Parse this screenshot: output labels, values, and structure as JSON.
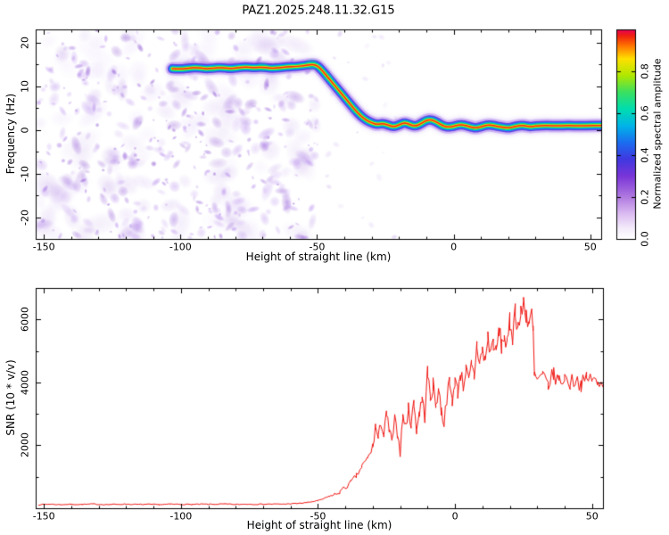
{
  "title": "PAZ1.2025.248.11.32.G15",
  "figure": {
    "bg": "#ffffff",
    "frame_color": "#000000"
  },
  "chart_data": [
    {
      "type": "heatmap",
      "panel": "spectrogram",
      "xlabel": "Height of straight line (km)",
      "ylabel": "Frequency (Hz)",
      "xlim": [
        -153,
        54
      ],
      "ylim": [
        -25,
        23
      ],
      "xticks": [
        -150,
        -100,
        -50,
        0,
        50
      ],
      "yticks": [
        -20,
        -10,
        0,
        10,
        20
      ],
      "grid": false,
      "colorbar": {
        "label": "Normalized spectral amplitude",
        "ticks": [
          0.0,
          0.2,
          0.4,
          0.6,
          0.8
        ],
        "vmin": 0.0,
        "vmax": 1.0,
        "stops": [
          [
            0,
            "#ffffff"
          ],
          [
            0.05,
            "#f4ecfb"
          ],
          [
            0.12,
            "#dcbcf2"
          ],
          [
            0.2,
            "#b07ae0"
          ],
          [
            0.3,
            "#7a35d8"
          ],
          [
            0.38,
            "#4038e0"
          ],
          [
            0.46,
            "#1b6df0"
          ],
          [
            0.54,
            "#00b4e8"
          ],
          [
            0.62,
            "#00ddb0"
          ],
          [
            0.7,
            "#3ae060"
          ],
          [
            0.78,
            "#b0e800"
          ],
          [
            0.86,
            "#ffe000"
          ],
          [
            0.92,
            "#ff7800"
          ],
          [
            0.97,
            "#f02010"
          ],
          [
            1,
            "#e8005a"
          ]
        ]
      },
      "ridge": [
        [
          -103,
          14
        ],
        [
          -100,
          13.9
        ],
        [
          -97,
          14.1
        ],
        [
          -94,
          14.3
        ],
        [
          -91,
          14.0
        ],
        [
          -88,
          14.1
        ],
        [
          -85,
          14.3
        ],
        [
          -82,
          14.0
        ],
        [
          -79,
          14.2
        ],
        [
          -76,
          14.4
        ],
        [
          -73,
          14.2
        ],
        [
          -70,
          14.4
        ],
        [
          -67,
          14.1
        ],
        [
          -64,
          14.2
        ],
        [
          -61,
          14.4
        ],
        [
          -58,
          14.5
        ],
        [
          -55,
          14.7
        ],
        [
          -52,
          15.0
        ],
        [
          -50,
          14.8
        ],
        [
          -48,
          13.5
        ],
        [
          -46,
          12.0
        ],
        [
          -44,
          10.5
        ],
        [
          -42,
          9.0
        ],
        [
          -40,
          7.5
        ],
        [
          -38,
          6.0
        ],
        [
          -36,
          4.5
        ],
        [
          -34,
          3.2
        ],
        [
          -32,
          2.2
        ],
        [
          -30,
          1.6
        ],
        [
          -28,
          1.2
        ],
        [
          -26,
          1.5
        ],
        [
          -24,
          1.1
        ],
        [
          -22,
          0.7
        ],
        [
          -20,
          1.1
        ],
        [
          -18,
          1.7
        ],
        [
          -16,
          1.2
        ],
        [
          -14,
          0.8
        ],
        [
          -12,
          1.4
        ],
        [
          -10,
          2.2
        ],
        [
          -8,
          2.3
        ],
        [
          -6,
          1.7
        ],
        [
          -4,
          0.9
        ],
        [
          -2,
          0.6
        ],
        [
          0,
          0.8
        ],
        [
          2,
          1.2
        ],
        [
          4,
          1.1
        ],
        [
          6,
          0.7
        ],
        [
          8,
          0.4
        ],
        [
          10,
          0.7
        ],
        [
          12,
          1.1
        ],
        [
          14,
          1.1
        ],
        [
          16,
          0.8
        ],
        [
          18,
          0.6
        ],
        [
          20,
          0.4
        ],
        [
          22,
          0.7
        ],
        [
          24,
          1.0
        ],
        [
          26,
          1.0
        ],
        [
          28,
          0.7
        ],
        [
          30,
          0.9
        ],
        [
          34,
          1.0
        ],
        [
          38,
          0.9
        ],
        [
          42,
          1.0
        ],
        [
          46,
          0.9
        ],
        [
          50,
          1.0
        ],
        [
          54,
          1.0
        ]
      ],
      "ridge_blobs": [
        [
          -88,
          14.1,
          5
        ],
        [
          -70,
          14.4,
          6
        ],
        [
          -52,
          15.0,
          7
        ],
        [
          -46,
          12.0,
          5
        ],
        [
          -36,
          4.5,
          5
        ],
        [
          -10,
          2.2,
          5
        ],
        [
          -4,
          0.9,
          5
        ],
        [
          22,
          0.7,
          4
        ]
      ],
      "noise": {
        "seed": 1337,
        "dense": {
          "x": [
            -152.5,
            -50
          ],
          "count": 520
        },
        "sparse": {
          "x": [
            -50,
            -18
          ],
          "count": 28
        }
      }
    },
    {
      "type": "line",
      "panel": "snr",
      "xlabel": "Height of straight line (km)",
      "ylabel": "SNR (10 * v/v)",
      "xlim": [
        -153,
        54
      ],
      "ylim": [
        0,
        7000
      ],
      "xticks": [
        -150,
        -100,
        -50,
        0,
        50
      ],
      "yticks": [
        2000,
        4000,
        6000
      ],
      "grid": false,
      "series": [
        {
          "name": "SNR",
          "color": "#f01510",
          "jitter_seed": 7,
          "x": [
            -152,
            -148,
            -144,
            -140,
            -136,
            -132,
            -128,
            -124,
            -120,
            -116,
            -112,
            -108,
            -104,
            -100,
            -96,
            -92,
            -88,
            -84,
            -80,
            -76,
            -72,
            -68,
            -64,
            -60,
            -58,
            -56,
            -54,
            -52,
            -50,
            -48,
            -46,
            -44,
            -42,
            -40,
            -38,
            -36,
            -34,
            -32,
            -30,
            -29,
            -28,
            -27,
            -26,
            -25,
            -24,
            -23,
            -22,
            -21,
            -20,
            -19,
            -18,
            -17,
            -16,
            -15,
            -14,
            -13,
            -12,
            -11,
            -10,
            -9,
            -8,
            -7,
            -6,
            -5,
            -4,
            -3,
            -2,
            -1,
            0,
            1,
            2,
            3,
            4,
            5,
            6,
            7,
            8,
            9,
            10,
            11,
            12,
            13,
            14,
            15,
            16,
            17,
            18,
            19,
            20,
            21,
            22,
            23,
            24,
            25,
            26,
            27,
            28,
            28.5,
            29,
            30,
            32,
            34,
            36,
            38,
            40,
            42,
            44,
            46,
            48,
            50,
            52,
            54
          ],
          "y": [
            110,
            130,
            115,
            125,
            120,
            135,
            115,
            125,
            130,
            120,
            125,
            115,
            130,
            125,
            120,
            130,
            125,
            135,
            120,
            130,
            125,
            135,
            130,
            140,
            150,
            160,
            180,
            210,
            240,
            300,
            380,
            430,
            520,
            660,
            820,
            1020,
            1320,
            1560,
            1950,
            2600,
            2200,
            2750,
            2300,
            2950,
            2500,
            2100,
            2800,
            2400,
            1750,
            2950,
            2600,
            3150,
            2700,
            3350,
            2500,
            3050,
            3450,
            2900,
            4300,
            3500,
            3900,
            3300,
            3800,
            3100,
            2700,
            3500,
            3950,
            3400,
            4100,
            3700,
            4300,
            3900,
            4400,
            4000,
            4500,
            4200,
            5200,
            4600,
            5000,
            4700,
            5400,
            5000,
            5300,
            4900,
            5600,
            5200,
            5500,
            5100,
            5900,
            5500,
            6300,
            5800,
            6100,
            6550,
            6200,
            5900,
            6100,
            5600,
            4200,
            4050,
            4150,
            3950,
            4250,
            4050,
            4150,
            3980,
            4120,
            3950,
            4080,
            4150,
            3900,
            3980
          ]
        }
      ]
    }
  ]
}
